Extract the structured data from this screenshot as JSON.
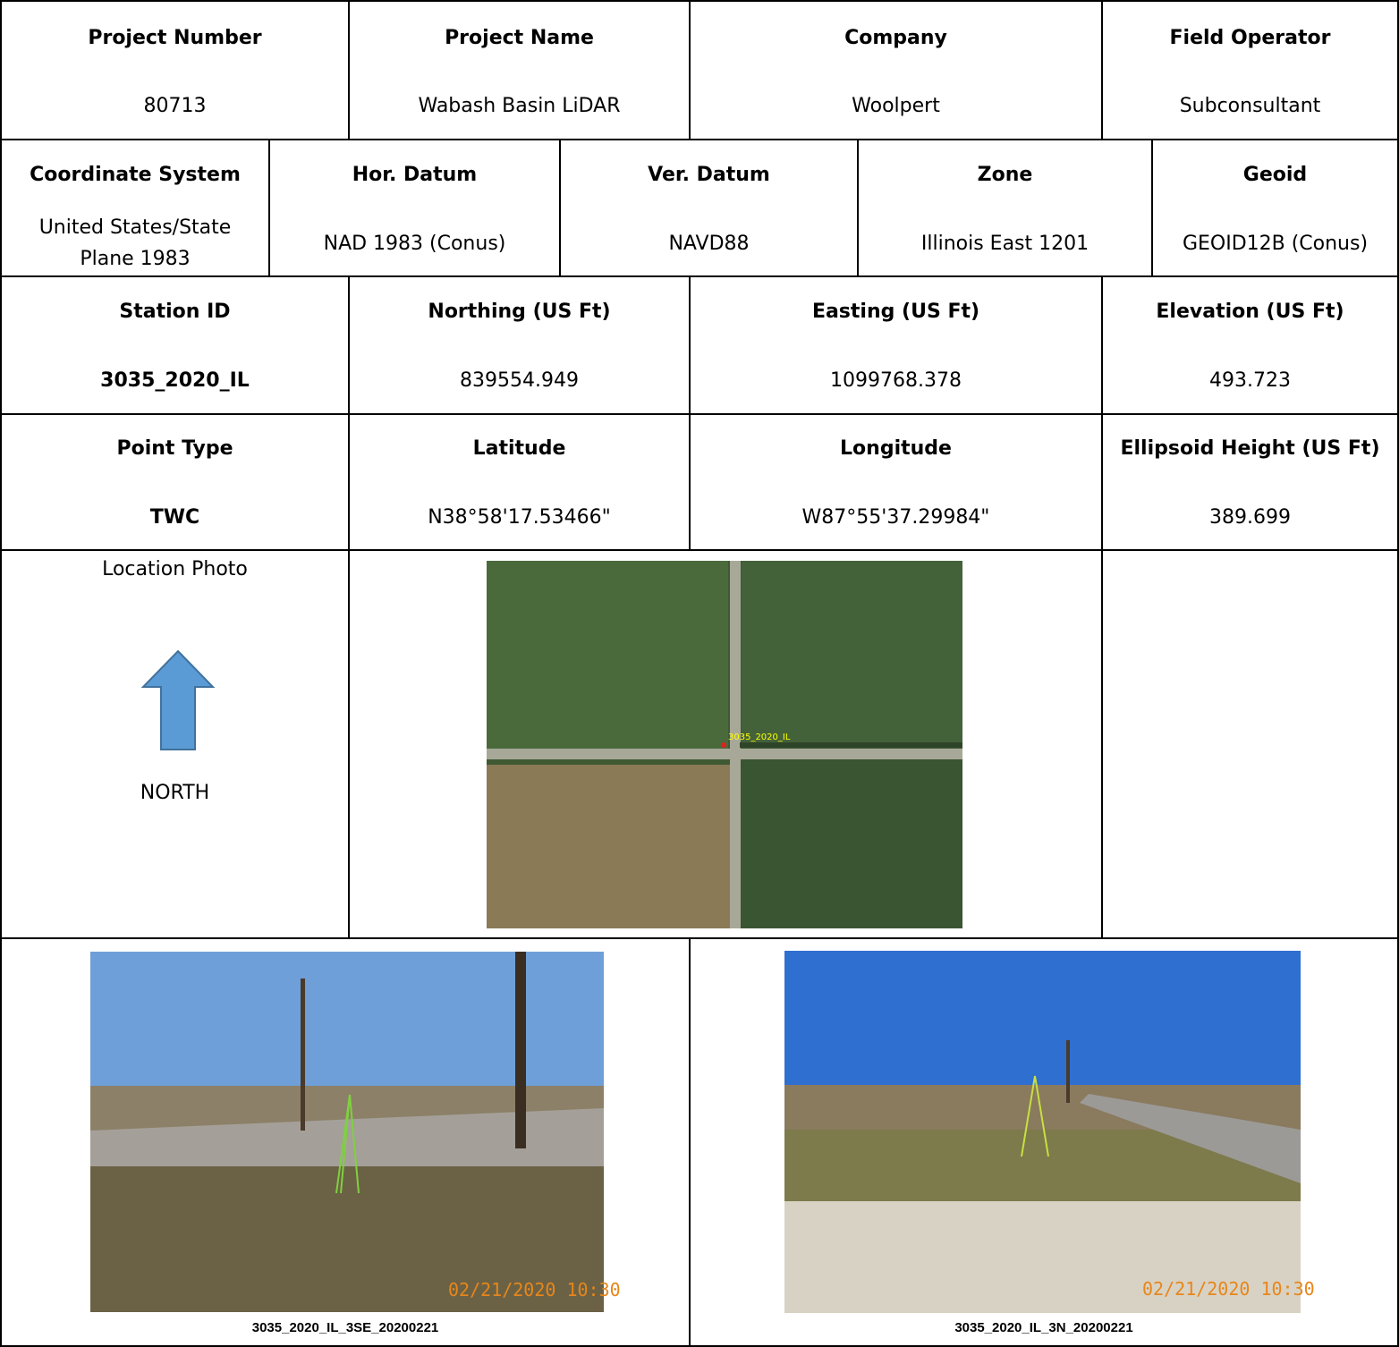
{
  "rows": [
    {
      "cells": [
        {
          "header": "Project Number",
          "value": "80713"
        },
        {
          "header": "Project Name",
          "value": "Wabash Basin LiDAR"
        },
        {
          "header": "Company",
          "value": "Woolpert"
        },
        {
          "header": "Field Operator",
          "value": "Subconsultant"
        }
      ]
    },
    {
      "cells": [
        {
          "header": "Coordinate System",
          "value": "United States/State Plane 1983"
        },
        {
          "header": "Hor. Datum",
          "value": "NAD 1983 (Conus)"
        },
        {
          "header": "Ver. Datum",
          "value": "NAVD88"
        },
        {
          "header": "Zone",
          "value": "Illinois East 1201"
        },
        {
          "header": "Geoid",
          "value": "GEOID12B (Conus)"
        }
      ]
    },
    {
      "cells": [
        {
          "header": "Station ID",
          "value": "3035_2020_IL"
        },
        {
          "header": "Northing (US Ft)",
          "value": "839554.949"
        },
        {
          "header": "Easting (US Ft)",
          "value": "1099768.378"
        },
        {
          "header": "Elevation (US Ft)",
          "value": "493.723"
        }
      ]
    },
    {
      "cells": [
        {
          "header": "Point Type",
          "value": "TWC"
        },
        {
          "header": "Latitude",
          "value": "N38°58'17.53466\""
        },
        {
          "header": "Longitude",
          "value": "W87°55'37.29984\""
        },
        {
          "header": "Ellipsoid Height (US Ft)",
          "value": "389.699"
        }
      ]
    }
  ],
  "location": {
    "label": "Location Photo",
    "direction": "NORTH",
    "map_label": "3035_2020_IL"
  },
  "photos": [
    {
      "caption": "3035_2020_IL_3SE_20200221",
      "timestamp": "02/21/2020 10:30"
    },
    {
      "caption": "3035_2020_IL_3N_20200221",
      "timestamp": "02/21/2020 10:30"
    }
  ]
}
